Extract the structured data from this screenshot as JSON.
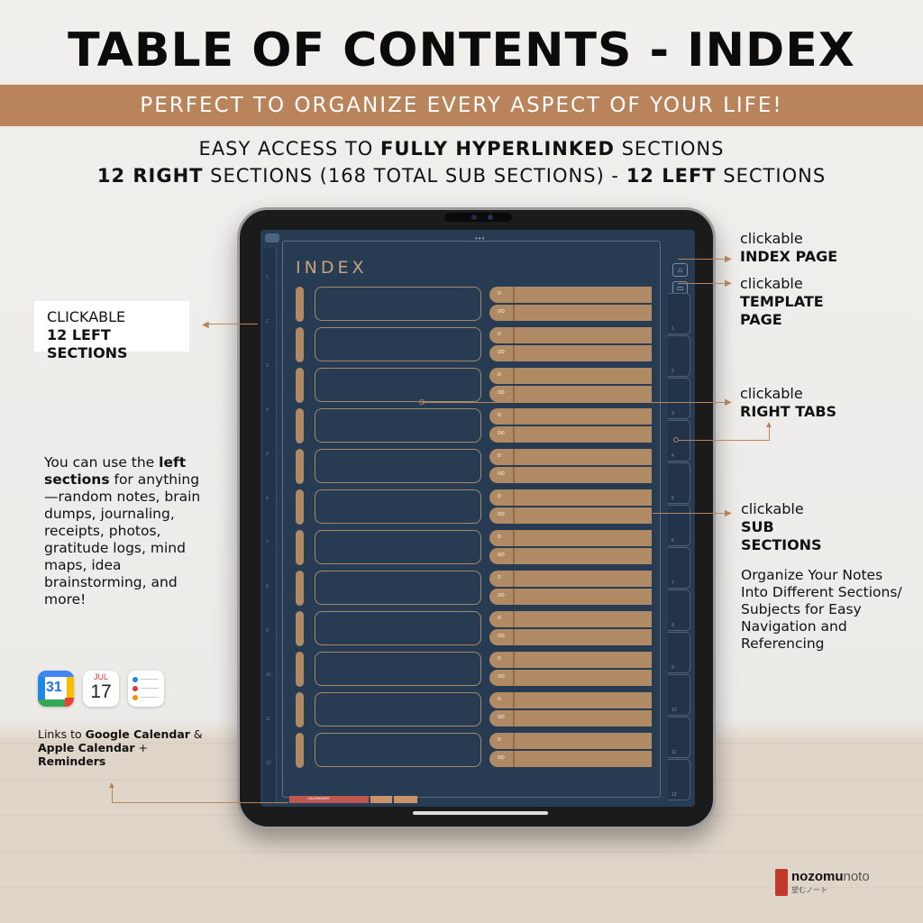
{
  "header": {
    "title": "TABLE OF CONTENTS - INDEX",
    "banner": "PERFECT TO ORGANIZE EVERY ASPECT OF YOUR LIFE!",
    "line1_a": "EASY ACCESS TO ",
    "line1_b": "FULLY HYPERLINKED",
    "line1_c": " SECTIONS",
    "line2_a": "12 RIGHT",
    "line2_b": " SECTIONS (168 TOTAL SUB SECTIONS) - ",
    "line2_c": "12 LEFT",
    "line2_d": " SECTIONS"
  },
  "screen": {
    "index_title": "INDEX",
    "sub_icon_1": "o",
    "sub_icon_2": "oo",
    "left_numbers": [
      "1",
      "2",
      "3",
      "4",
      "5",
      "6",
      "7",
      "8",
      "9",
      "10",
      "11",
      "12"
    ],
    "right_numbers": [
      "1",
      "2",
      "3",
      "4",
      "5",
      "6",
      "7",
      "8",
      "9",
      "10",
      "11",
      "12"
    ],
    "bottom_tab_label": "CALENDARS"
  },
  "annotations": {
    "left_sections_1": "CLICKABLE",
    "left_sections_2": "12 LEFT SECTIONS",
    "index_1": "clickable",
    "index_2": "INDEX PAGE",
    "template_1": "clickable",
    "template_2": "TEMPLATE",
    "template_3": "PAGE",
    "right_tabs_1": "clickable",
    "right_tabs_2": "RIGHT TABS",
    "sub_1": "clickable",
    "sub_2": "SUB",
    "sub_3": "SECTIONS",
    "organize": "Organize Your Notes Into Different Sections/ Subjects for Easy Navigation and Referencing",
    "left_use_a": "You can use the ",
    "left_use_b": "left sections",
    "left_use_c": " for anything—random notes, brain dumps, journaling, receipts, photos, gratitude logs, mind maps, idea brainstorming, and more!",
    "links_a": "Links to ",
    "links_b": "Google Calendar",
    "links_c": " & ",
    "links_d": "Apple Calendar",
    "links_e": " + ",
    "links_f": "Reminders"
  },
  "apps": {
    "gcal_day": "31",
    "acal_month": "JUL",
    "acal_day": "17"
  },
  "brand": {
    "name_a": "nozomu",
    "name_b": "noto",
    "tagline": "望むノート"
  },
  "colors": {
    "accent": "#b9845b",
    "screen_bg": "#273c53",
    "tab_tan": "#b08a64"
  }
}
